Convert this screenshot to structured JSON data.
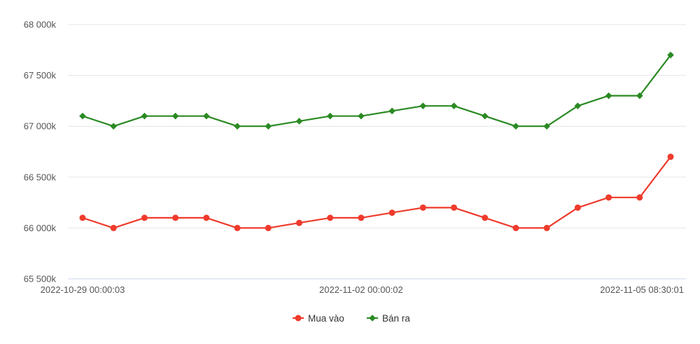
{
  "chart_data": {
    "type": "line",
    "title": "",
    "xlabel": "",
    "ylabel": "",
    "ylim": [
      65500,
      68000
    ],
    "yticks": [
      {
        "value": 65500,
        "label": "65 500k"
      },
      {
        "value": 66000,
        "label": "66 000k"
      },
      {
        "value": 66500,
        "label": "66 500k"
      },
      {
        "value": 67000,
        "label": "67 000k"
      },
      {
        "value": 67500,
        "label": "67 500k"
      },
      {
        "value": 68000,
        "label": "68 000k"
      }
    ],
    "xtick_labels": [
      {
        "index": 0,
        "label": "2022-10-29 00:00:03"
      },
      {
        "index": 9,
        "label": "2022-11-02 00:00:02"
      },
      {
        "index": 19,
        "label": "2022-11-05 08:30:01"
      }
    ],
    "grid": true,
    "legend_position": "bottom-center",
    "series": [
      {
        "name": "Mua vào",
        "color": "#ef3b2c",
        "marker": "circle",
        "values": [
          66100,
          66000,
          66100,
          66100,
          66100,
          66000,
          66000,
          66050,
          66100,
          66100,
          66150,
          66200,
          66200,
          66100,
          66000,
          66000,
          66200,
          66300,
          66300,
          66700
        ]
      },
      {
        "name": "Bán ra",
        "color": "#2a8a22",
        "marker": "diamond",
        "values": [
          67100,
          67000,
          67100,
          67100,
          67100,
          67000,
          67000,
          67050,
          67100,
          67100,
          67150,
          67200,
          67200,
          67100,
          67000,
          67000,
          67200,
          67300,
          67300,
          67700
        ]
      }
    ]
  }
}
